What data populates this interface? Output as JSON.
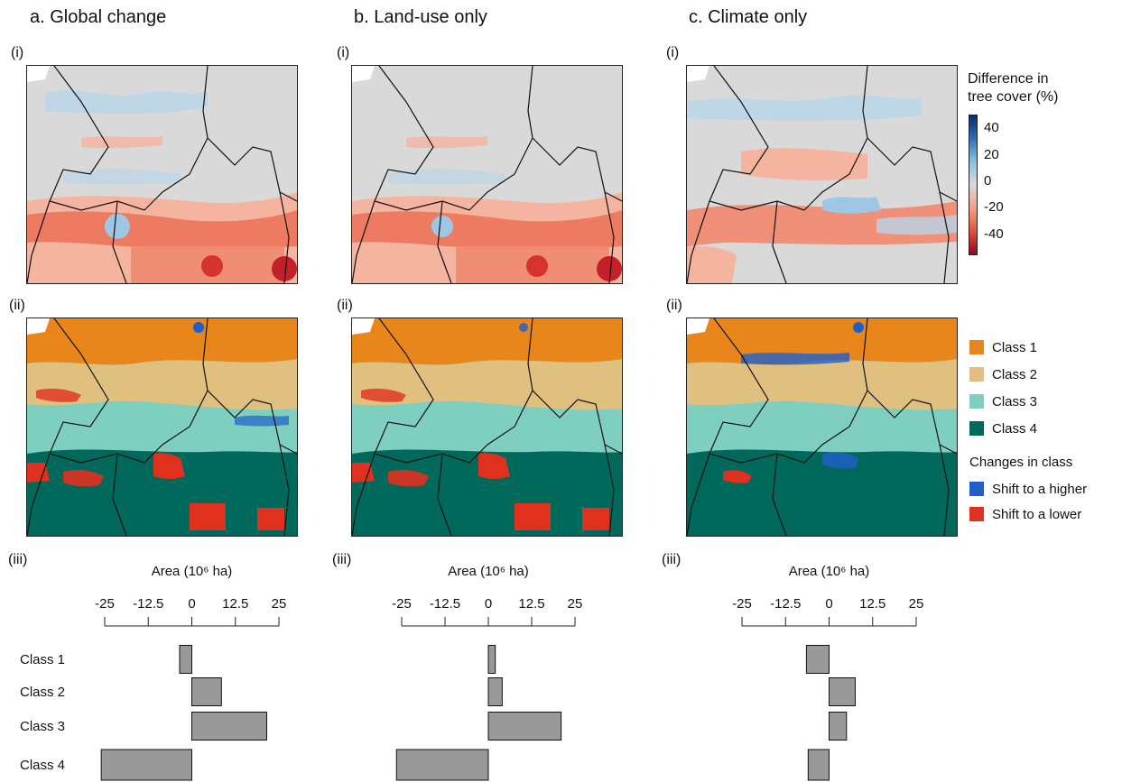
{
  "panels": [
    {
      "title": "a. Global change"
    },
    {
      "title": "b. Land-use only"
    },
    {
      "title": "c. Climate only"
    }
  ],
  "row_labels": {
    "i": "(i)",
    "ii": "(ii)",
    "iii": "(iii)"
  },
  "colorbar": {
    "title_line1": "Difference in",
    "title_line2": "tree cover (%)",
    "ticks": [
      "40",
      "20",
      "0",
      "-20",
      "-40"
    ],
    "colors": [
      "#0b2b6b",
      "#2f6fb2",
      "#8fbfe0",
      "#d9d9d9",
      "#f2a18a",
      "#e0533f",
      "#8b0a14"
    ]
  },
  "class_legend": {
    "items": [
      {
        "label": "Class 1",
        "color": "#e8861b"
      },
      {
        "label": "Class 2",
        "color": "#dfc07f"
      },
      {
        "label": "Class 3",
        "color": "#7ecfc0"
      },
      {
        "label": "Class 4",
        "color": "#00695c"
      }
    ],
    "changes_title": "Changes in class",
    "changes": [
      {
        "label": "Shift to a higher",
        "color": "#1f5fcc"
      },
      {
        "label": "Shift to a lower",
        "color": "#e0301e"
      }
    ]
  },
  "chart_data": [
    {
      "type": "bar",
      "orientation": "horizontal",
      "title": "",
      "xlabel": "Area (10⁶ ha)",
      "xlim": [
        -25,
        25
      ],
      "xticks": [
        "-25",
        "-12.5",
        "0",
        "12.5",
        "25"
      ],
      "categories": [
        "Class 1",
        "Class 2",
        "Class 3",
        "Class 4"
      ],
      "values": [
        -3.5,
        8.5,
        21.5,
        -26
      ]
    },
    {
      "type": "bar",
      "orientation": "horizontal",
      "title": "",
      "xlabel": "Area (10⁶ ha)",
      "xlim": [
        -25,
        25
      ],
      "xticks": [
        "-25",
        "-12.5",
        "0",
        "12.5",
        "25"
      ],
      "categories": [
        "Class 1",
        "Class 2",
        "Class 3",
        "Class 4"
      ],
      "values": [
        2,
        4,
        21,
        -26.5
      ]
    },
    {
      "type": "bar",
      "orientation": "horizontal",
      "title": "",
      "xlabel": "Area (10⁶ ha)",
      "xlim": [
        -25,
        25
      ],
      "xticks": [
        "-25",
        "-12.5",
        "0",
        "12.5",
        "25"
      ],
      "categories": [
        "Class 1",
        "Class 2",
        "Class 3",
        "Class 4"
      ],
      "values": [
        -6.5,
        7.5,
        5,
        -6
      ]
    }
  ]
}
